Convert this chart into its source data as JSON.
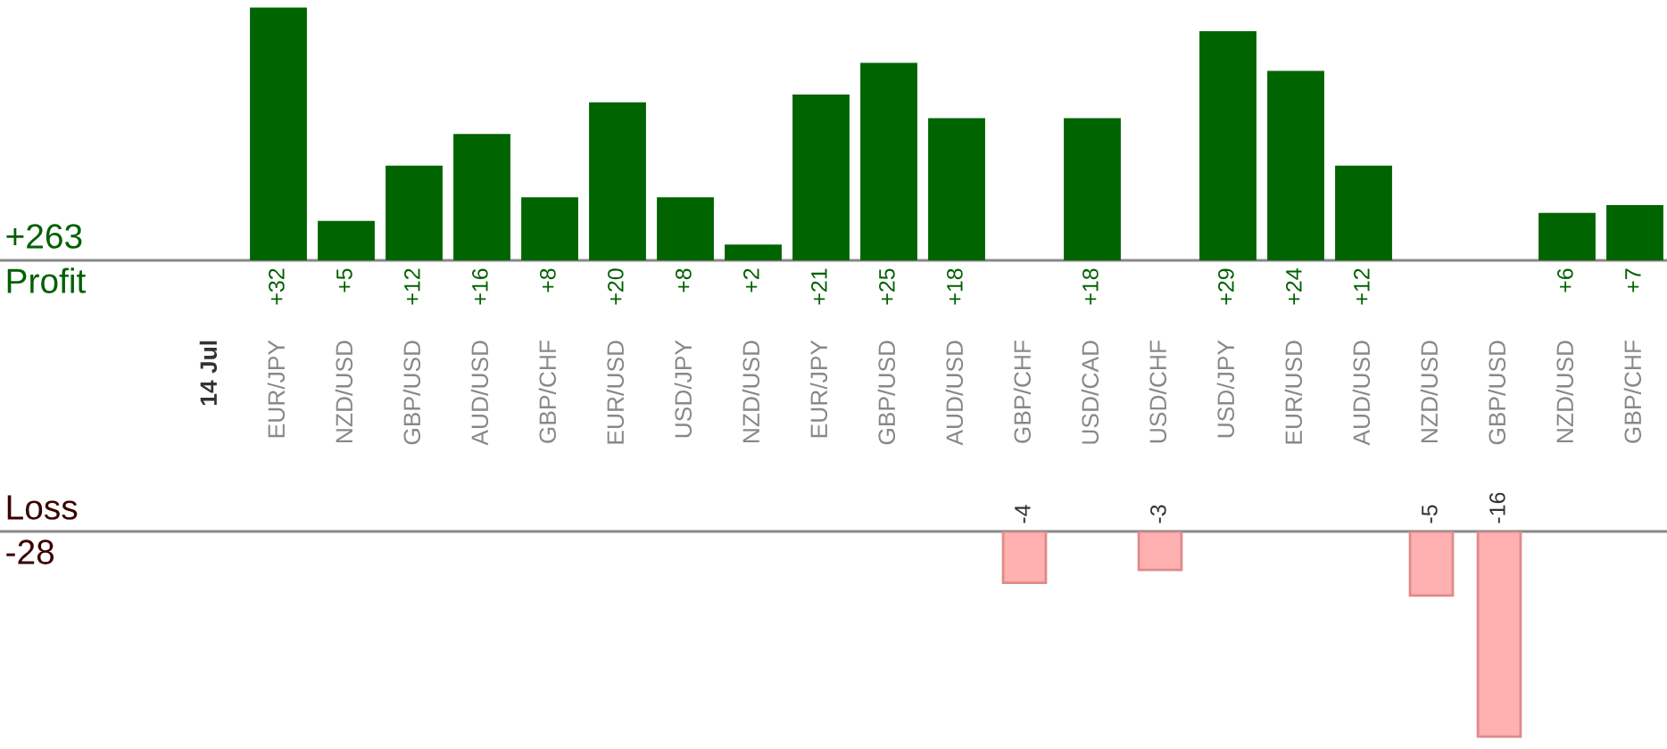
{
  "chart_data": [
    {
      "type": "bar",
      "categories": [
        "14 Jul",
        "EUR/JPY",
        "NZD/USD",
        "GBP/USD",
        "AUD/USD",
        "GBP/CHF",
        "EUR/USD",
        "USD/JPY",
        "NZD/USD",
        "EUR/JPY",
        "GBP/USD",
        "AUD/USD",
        "GBP/CHF",
        "USD/CAD",
        "USD/CHF",
        "USD/JPY",
        "EUR/USD",
        "AUD/USD",
        "NZD/USD",
        "GBP/USD",
        "NZD/USD",
        "GBP/CHF"
      ],
      "values": [
        null,
        32,
        5,
        12,
        16,
        8,
        20,
        8,
        2,
        21,
        25,
        18,
        null,
        18,
        null,
        29,
        24,
        12,
        null,
        null,
        6,
        7
      ],
      "value_labels": [
        null,
        "+32",
        "+5",
        "+12",
        "+16",
        "+8",
        "+20",
        "+8",
        "+2",
        "+21",
        "+25",
        "+18",
        null,
        "+18",
        null,
        "+29",
        "+24",
        "+12",
        null,
        null,
        "+6",
        "+7"
      ],
      "color": "#006400",
      "tick_labels": "x",
      "annotations": [
        "+263",
        "Profit"
      ]
    },
    {
      "type": "bar",
      "categories": [
        null,
        null,
        null,
        null,
        null,
        null,
        null,
        null,
        null,
        null,
        null,
        null,
        null,
        null,
        null,
        null,
        null,
        null,
        null,
        null,
        null,
        null
      ],
      "values": [
        null,
        null,
        null,
        null,
        null,
        null,
        null,
        null,
        null,
        null,
        null,
        null,
        -4,
        null,
        -3,
        null,
        null,
        null,
        -5,
        -16,
        null,
        null
      ],
      "value_labels": [
        null,
        null,
        null,
        null,
        null,
        null,
        null,
        null,
        null,
        null,
        null,
        null,
        "-4",
        null,
        "-3",
        null,
        null,
        null,
        "-5",
        "-16",
        null,
        null
      ],
      "color": "#ffb0b0",
      "tick_labels": false,
      "annotations": [
        "Loss",
        "-28"
      ]
    }
  ]
}
